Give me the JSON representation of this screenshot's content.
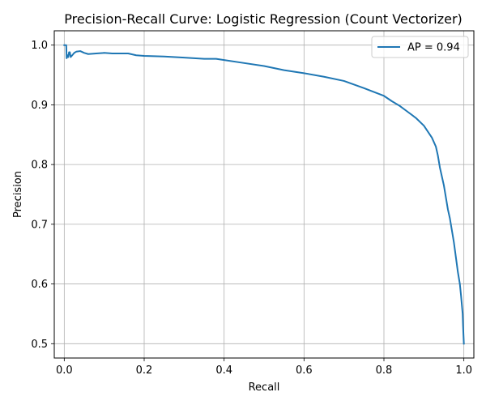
{
  "chart_data": {
    "type": "line",
    "title": "Precision-Recall Curve: Logistic Regression (Count Vectorizer)",
    "xlabel": "Recall",
    "ylabel": "Precision",
    "xlim": [
      -0.025,
      1.025
    ],
    "ylim": [
      0.476,
      1.024
    ],
    "xticks": [
      0.0,
      0.2,
      0.4,
      0.6,
      0.8,
      1.0
    ],
    "xtick_labels": [
      "0.0",
      "0.2",
      "0.4",
      "0.6",
      "0.8",
      "1.0"
    ],
    "yticks": [
      0.5,
      0.6,
      0.7,
      0.8,
      0.9,
      1.0
    ],
    "ytick_labels": [
      "0.5",
      "0.6",
      "0.7",
      "0.8",
      "0.9",
      "1.0"
    ],
    "grid": true,
    "legend_position": "top-right",
    "series": [
      {
        "name": "AP = 0.94",
        "color": "#1f77b4",
        "x": [
          0.0,
          0.005,
          0.006,
          0.008,
          0.01,
          0.012,
          0.014,
          0.016,
          0.02,
          0.025,
          0.03,
          0.04,
          0.05,
          0.06,
          0.08,
          0.1,
          0.12,
          0.14,
          0.16,
          0.18,
          0.2,
          0.25,
          0.3,
          0.35,
          0.38,
          0.4,
          0.45,
          0.5,
          0.55,
          0.6,
          0.65,
          0.7,
          0.75,
          0.8,
          0.82,
          0.84,
          0.86,
          0.88,
          0.9,
          0.91,
          0.92,
          0.93,
          0.935,
          0.94,
          0.945,
          0.95,
          0.955,
          0.96,
          0.965,
          0.97,
          0.975,
          0.98,
          0.985,
          0.99,
          0.993,
          0.995,
          0.997,
          0.998,
          0.999,
          1.0
        ],
        "y": [
          1.0,
          1.0,
          0.978,
          0.983,
          0.98,
          0.988,
          0.988,
          0.98,
          0.983,
          0.987,
          0.989,
          0.99,
          0.987,
          0.985,
          0.986,
          0.987,
          0.986,
          0.986,
          0.986,
          0.983,
          0.982,
          0.981,
          0.979,
          0.977,
          0.977,
          0.975,
          0.97,
          0.965,
          0.958,
          0.953,
          0.947,
          0.94,
          0.928,
          0.915,
          0.906,
          0.898,
          0.888,
          0.878,
          0.865,
          0.855,
          0.845,
          0.83,
          0.815,
          0.795,
          0.78,
          0.765,
          0.745,
          0.725,
          0.71,
          0.69,
          0.67,
          0.645,
          0.62,
          0.6,
          0.58,
          0.565,
          0.55,
          0.53,
          0.515,
          0.5
        ]
      }
    ]
  }
}
